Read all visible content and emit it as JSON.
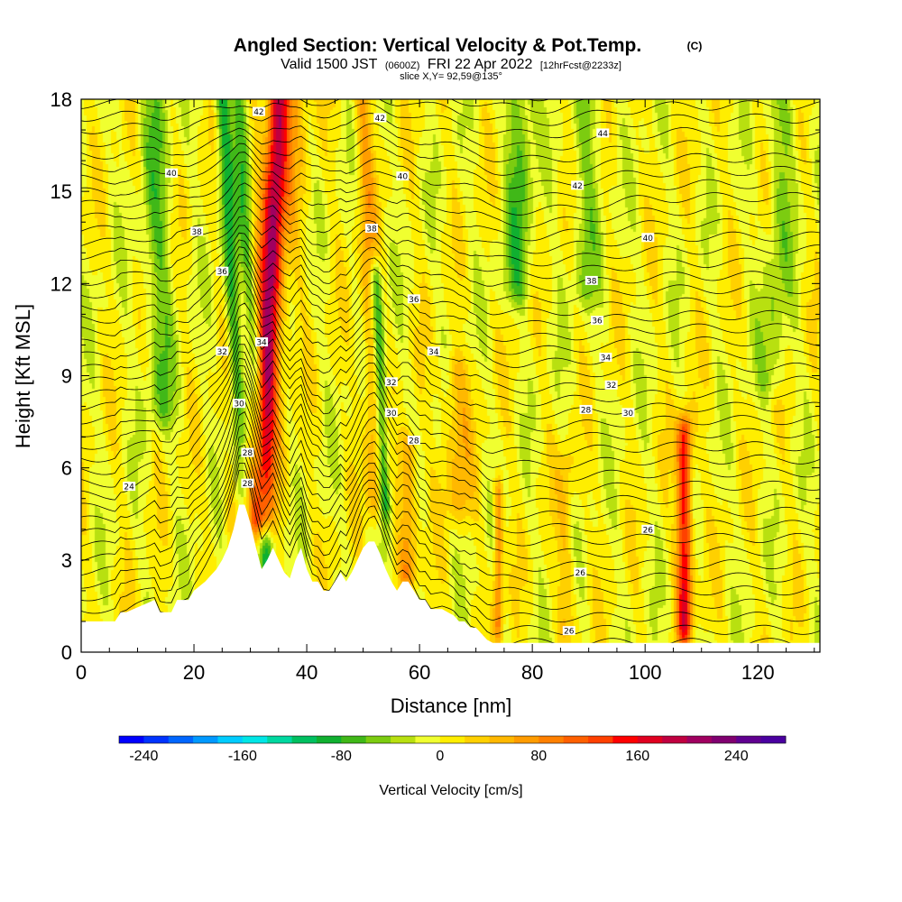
{
  "title": {
    "main": "Angled Section: Vertical Velocity & Pot.Temp.",
    "units": "(C)",
    "valid_prefix": "Valid 1500 JST",
    "valid_utc": "(0600Z)",
    "valid_date": "FRI 22 Apr 2022",
    "forecast": "[12hrFcst@2233z]",
    "slice": "slice X,Y= 92,59@135°"
  },
  "chart_data": {
    "type": "heatmap",
    "xlabel": "Distance [nm]",
    "ylabel": "Height [Kft MSL]",
    "xlim": [
      0,
      131
    ],
    "ylim": [
      0,
      18
    ],
    "x_ticks": [
      0,
      20,
      40,
      60,
      80,
      100,
      120
    ],
    "y_ticks": [
      0,
      3,
      6,
      9,
      12,
      15,
      18
    ],
    "colorbar": {
      "label": "Vertical Velocity [cm/s]",
      "min": -260,
      "max": 280,
      "step": 20,
      "tick_values": [
        -240,
        -160,
        -80,
        0,
        80,
        160,
        240
      ],
      "tick_labels": [
        "-240",
        "-160",
        "-80",
        "0",
        "80",
        "160",
        "240"
      ],
      "colors": [
        "#0000ff",
        "#0033ff",
        "#0066ff",
        "#0099ff",
        "#00ccff",
        "#00e6e6",
        "#00d8a0",
        "#00c060",
        "#10b030",
        "#40b818",
        "#7ccc10",
        "#b8e010",
        "#f0ff30",
        "#ffee00",
        "#ffd000",
        "#ffb800",
        "#ff9c00",
        "#ff8000",
        "#ff6000",
        "#ff4000",
        "#ff0000",
        "#e00020",
        "#c00040",
        "#a00060",
        "#800070",
        "#600090",
        "#4a00a0"
      ]
    },
    "terrain_profile": {
      "x": [
        0,
        6,
        7,
        8,
        13,
        14,
        16,
        17,
        19,
        20,
        22,
        24,
        25,
        26,
        27,
        28,
        29,
        30,
        31,
        32,
        33,
        34,
        35,
        36,
        37,
        38,
        39,
        40,
        41,
        42,
        43,
        44,
        45,
        46,
        47,
        48,
        49,
        50,
        51,
        52,
        53,
        54,
        55,
        56,
        57,
        58,
        59,
        60,
        61,
        62,
        63,
        64,
        65,
        66,
        67,
        68,
        69,
        70,
        71,
        72,
        73,
        74,
        75,
        80,
        90,
        100,
        110,
        120,
        131
      ],
      "y": [
        1.0,
        1.0,
        1.3,
        1.3,
        1.7,
        1.3,
        1.3,
        1.7,
        1.7,
        2.0,
        2.3,
        2.7,
        3.0,
        3.4,
        4.0,
        4.8,
        4.8,
        4.2,
        3.4,
        2.7,
        3.0,
        3.4,
        3.0,
        2.6,
        2.4,
        3.0,
        3.4,
        2.7,
        2.3,
        2.3,
        2.0,
        2.0,
        2.3,
        2.6,
        2.3,
        2.6,
        3.0,
        3.4,
        3.6,
        3.6,
        3.2,
        2.7,
        2.3,
        2.0,
        2.3,
        2.3,
        2.0,
        1.7,
        1.7,
        1.4,
        1.4,
        1.4,
        1.3,
        1.2,
        1.0,
        1.0,
        0.8,
        0.8,
        0.6,
        0.4,
        0.3,
        0.3,
        0.3,
        0.3,
        0.3,
        0.3,
        0.3,
        0.3,
        0.3
      ]
    },
    "vertical_velocity_features": [
      {
        "x_base": 31,
        "x_top": 35,
        "w": 1.8,
        "value": 150,
        "y_min": 4.5,
        "y_max": 18
      },
      {
        "x_base": 28,
        "x_top": 36,
        "w": 4.0,
        "value": 60,
        "y_min": 4.5,
        "y_max": 18
      },
      {
        "x_base": 30,
        "x_top": 25,
        "w": 1.3,
        "value": -90,
        "y_min": 3,
        "y_max": 18
      },
      {
        "x_base": 34,
        "x_top": 28,
        "w": 1.3,
        "value": -80,
        "y_min": 3,
        "y_max": 18
      },
      {
        "x_base": 55,
        "x_top": 51,
        "w": 1.0,
        "value": -100,
        "y_min": 5,
        "y_max": 12
      },
      {
        "x_base": 53,
        "x_top": 50,
        "w": 1.5,
        "value": 60,
        "y_min": 5,
        "y_max": 18
      },
      {
        "x_base": 58,
        "x_top": 58,
        "w": 1.6,
        "value": 70,
        "y_min": 2.7,
        "y_max": 6.5
      },
      {
        "x_base": 67,
        "x_top": 66,
        "w": 2.5,
        "value": 50,
        "y_min": 5,
        "y_max": 9
      },
      {
        "x_base": 107,
        "x_top": 107,
        "w": 1.3,
        "value": 160,
        "y_min": 1,
        "y_max": 7
      },
      {
        "x_base": 74,
        "x_top": 74,
        "w": 0.8,
        "value": 90,
        "y_min": 1,
        "y_max": 5
      },
      {
        "x_base": 86,
        "x_top": 86,
        "w": 1.5,
        "value": 40,
        "y_min": 1,
        "y_max": 6
      },
      {
        "x_base": 15,
        "x_top": 13,
        "w": 2.5,
        "value": -50,
        "y_min": 8,
        "y_max": 18
      },
      {
        "x_base": 76,
        "x_top": 78,
        "w": 2.5,
        "value": -60,
        "y_min": 12,
        "y_max": 18
      },
      {
        "x_base": 88,
        "x_top": 90,
        "w": 2.5,
        "value": -40,
        "y_min": 12,
        "y_max": 18
      },
      {
        "x_base": 120,
        "x_top": 125,
        "w": 2.5,
        "value": -40,
        "y_min": 9,
        "y_max": 18
      }
    ],
    "isentropes": {
      "theta_min": 22,
      "theta_max": 45,
      "labels": [
        {
          "x": 8.5,
          "y": 5.4,
          "text": "24"
        },
        {
          "x": 29.5,
          "y": 6.5,
          "text": "28"
        },
        {
          "x": 29.5,
          "y": 5.5,
          "text": "28"
        },
        {
          "x": 28,
          "y": 8.1,
          "text": "30"
        },
        {
          "x": 25,
          "y": 9.8,
          "text": "32"
        },
        {
          "x": 32,
          "y": 10.1,
          "text": "34"
        },
        {
          "x": 25,
          "y": 12.4,
          "text": "36"
        },
        {
          "x": 20.5,
          "y": 13.7,
          "text": "38"
        },
        {
          "x": 16,
          "y": 15.6,
          "text": "40"
        },
        {
          "x": 31.5,
          "y": 17.6,
          "text": "42"
        },
        {
          "x": 55,
          "y": 8.8,
          "text": "32"
        },
        {
          "x": 55,
          "y": 7.8,
          "text": "30"
        },
        {
          "x": 59,
          "y": 6.9,
          "text": "28"
        },
        {
          "x": 62.5,
          "y": 9.8,
          "text": "34"
        },
        {
          "x": 59,
          "y": 11.5,
          "text": "36"
        },
        {
          "x": 51.5,
          "y": 13.8,
          "text": "38"
        },
        {
          "x": 57,
          "y": 15.5,
          "text": "40"
        },
        {
          "x": 53,
          "y": 17.4,
          "text": "42"
        },
        {
          "x": 89.5,
          "y": 7.9,
          "text": "28"
        },
        {
          "x": 97,
          "y": 7.8,
          "text": "30"
        },
        {
          "x": 94,
          "y": 8.7,
          "text": "32"
        },
        {
          "x": 93,
          "y": 9.6,
          "text": "34"
        },
        {
          "x": 91.5,
          "y": 10.8,
          "text": "36"
        },
        {
          "x": 90.5,
          "y": 12.1,
          "text": "38"
        },
        {
          "x": 100.5,
          "y": 13.5,
          "text": "40"
        },
        {
          "x": 88,
          "y": 15.2,
          "text": "42"
        },
        {
          "x": 92.5,
          "y": 16.9,
          "text": "44"
        },
        {
          "x": 100.5,
          "y": 4.0,
          "text": "26"
        },
        {
          "x": 88.5,
          "y": 2.6,
          "text": "26"
        },
        {
          "x": 86.5,
          "y": 0.7,
          "text": "26"
        }
      ]
    }
  }
}
